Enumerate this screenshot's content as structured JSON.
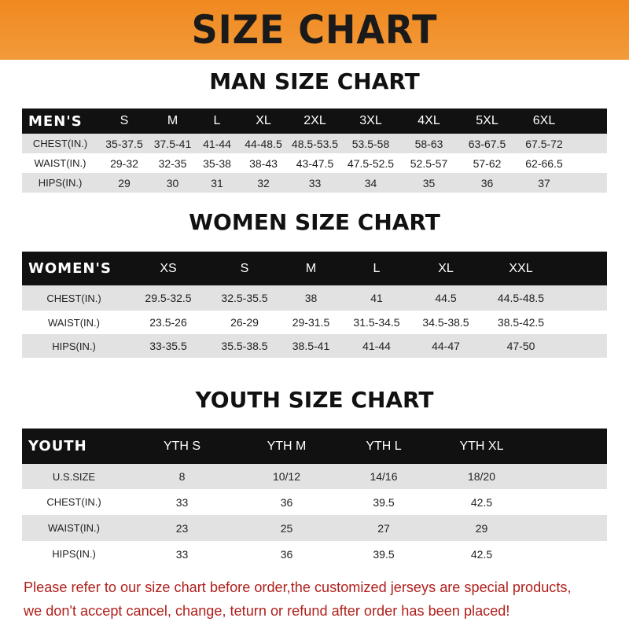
{
  "banner_title": "SIZE CHART",
  "tables": [
    {
      "id": "men",
      "title": "MAN SIZE CHART",
      "header": [
        "MEN'S",
        "S",
        "M",
        "L",
        "XL",
        "2XL",
        "3XL",
        "4XL",
        "5XL",
        "6XL"
      ],
      "rows": [
        [
          "CHEST(IN.)",
          "35-37.5",
          "37.5-41",
          "41-44",
          "44-48.5",
          "48.5-53.5",
          "53.5-58",
          "58-63",
          "63-67.5",
          "67.5-72"
        ],
        [
          "WAIST(IN.)",
          "29-32",
          "32-35",
          "35-38",
          "38-43",
          "43-47.5",
          "47.5-52.5",
          "52.5-57",
          "57-62",
          "62-66.5"
        ],
        [
          "HIPS(IN.)",
          "29",
          "30",
          "31",
          "32",
          "33",
          "34",
          "35",
          "36",
          "37"
        ]
      ]
    },
    {
      "id": "women",
      "title": "WOMEN SIZE CHART",
      "header": [
        "WOMEN'S",
        "XS",
        "S",
        "M",
        "L",
        "XL",
        "XXL"
      ],
      "rows": [
        [
          "CHEST(IN.)",
          "29.5-32.5",
          "32.5-35.5",
          "38",
          "41",
          "44.5",
          "44.5-48.5"
        ],
        [
          "WAIST(IN.)",
          "23.5-26",
          "26-29",
          "29-31.5",
          "31.5-34.5",
          "34.5-38.5",
          "38.5-42.5"
        ],
        [
          "HIPS(IN.)",
          "33-35.5",
          "35.5-38.5",
          "38.5-41",
          "41-44",
          "44-47",
          "47-50"
        ]
      ]
    },
    {
      "id": "youth",
      "title": "YOUTH SIZE CHART",
      "header": [
        "YOUTH",
        "YTH S",
        "YTH M",
        "YTH L",
        "YTH XL"
      ],
      "rows": [
        [
          "U.S.SIZE",
          "8",
          "10/12",
          "14/16",
          "18/20"
        ],
        [
          "CHEST(IN.)",
          "33",
          "36",
          "39.5",
          "42.5"
        ],
        [
          "WAIST(IN.)",
          "23",
          "25",
          "27",
          "29"
        ],
        [
          "HIPS(IN.)",
          "33",
          "36",
          "39.5",
          "42.5"
        ]
      ]
    }
  ],
  "note": {
    "line1": "Please refer to our size chart before order,the customized jerseys are special products,",
    "line2": "we don't accept cancel, change, teturn or refund after order has been placed!"
  },
  "colors": {
    "banner": "#f0891f",
    "header_row": "#111111",
    "alt_row": "#e2e2e2",
    "note": "#b0201c"
  }
}
